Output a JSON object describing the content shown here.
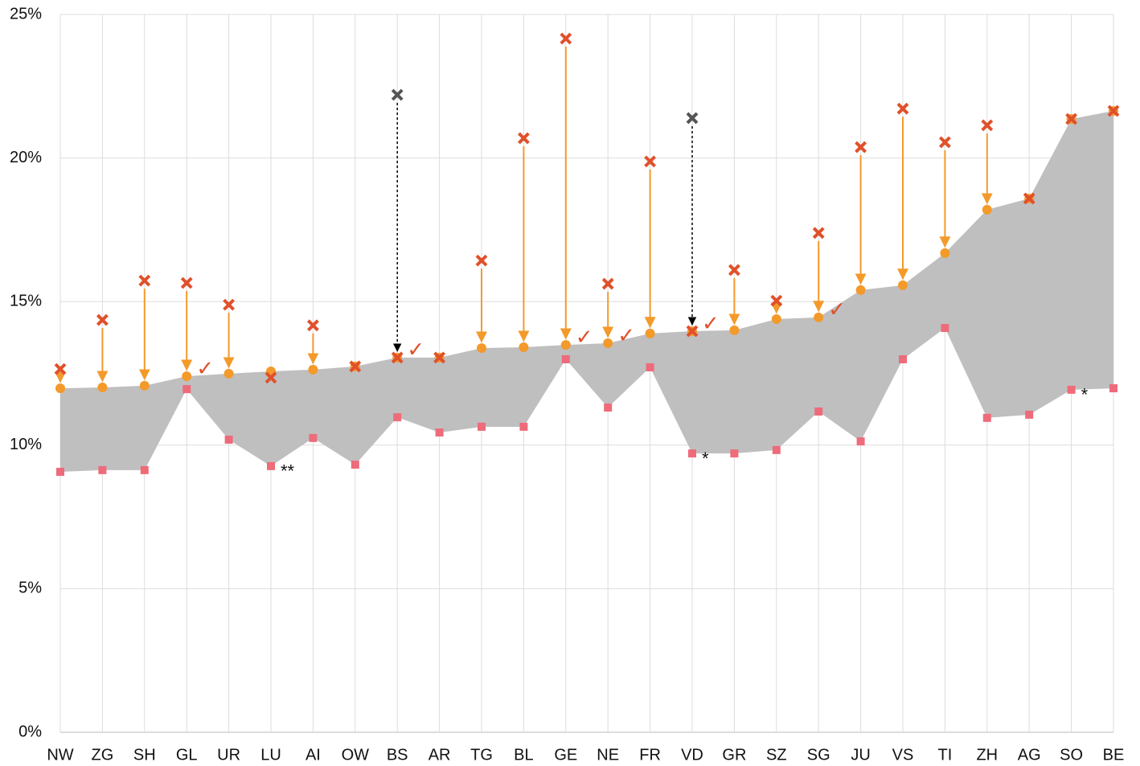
{
  "chart_data": {
    "type": "range-arrows",
    "categories": [
      "NW",
      "ZG",
      "SH",
      "GL",
      "UR",
      "LU",
      "AI",
      "OW",
      "BS",
      "AR",
      "TG",
      "BL",
      "GE",
      "NE",
      "FR",
      "VD",
      "GR",
      "SZ",
      "SG",
      "JU",
      "VS",
      "TI",
      "ZH",
      "AG",
      "SO",
      "BE"
    ],
    "series": [
      {
        "color": "#f39a2b",
        "marker": "circle",
        "values": [
          11.98,
          12.01,
          12.07,
          12.4,
          12.49,
          12.57,
          12.63,
          12.74,
          13.05,
          13.05,
          13.38,
          13.41,
          13.49,
          13.55,
          13.89,
          13.97,
          14.0,
          14.39,
          14.45,
          15.4,
          15.57,
          16.69,
          18.2,
          18.59,
          21.36,
          21.64
        ]
      },
      {
        "color": "#ee6b7a",
        "marker": "square",
        "values": [
          9.07,
          9.13,
          9.13,
          11.95,
          10.19,
          9.27,
          10.25,
          9.32,
          10.97,
          10.44,
          10.64,
          10.64,
          12.99,
          11.31,
          12.71,
          9.71,
          9.71,
          9.83,
          11.17,
          10.13,
          12.99,
          14.08,
          10.95,
          11.06,
          11.93,
          11.98
        ]
      },
      {
        "color": "#e0502a",
        "marker": "cross",
        "values": [
          12.65,
          14.36,
          15.73,
          15.65,
          14.89,
          12.35,
          14.17,
          12.74,
          13.05,
          13.05,
          16.43,
          20.69,
          24.16,
          15.62,
          19.88,
          13.97,
          16.1,
          15.03,
          17.39,
          20.38,
          21.72,
          20.55,
          21.14,
          18.59,
          21.36,
          21.64
        ]
      },
      {
        "color": "#555555",
        "marker": "cross",
        "values": [
          null,
          null,
          null,
          null,
          null,
          null,
          null,
          null,
          22.2,
          null,
          null,
          null,
          null,
          null,
          null,
          21.39,
          null,
          null,
          null,
          null,
          null,
          null,
          null,
          null,
          null,
          null
        ]
      }
    ],
    "area_color": "#bfbfc0",
    "checks": [
      null,
      null,
      null,
      "✓",
      null,
      null,
      null,
      null,
      "✓",
      null,
      null,
      null,
      "✓",
      "✓",
      null,
      "✓",
      null,
      null,
      "✓",
      null,
      null,
      null,
      null,
      null,
      null,
      null
    ],
    "check_color": "#e0502a",
    "notes": [
      null,
      null,
      null,
      null,
      null,
      "**",
      null,
      null,
      null,
      null,
      null,
      null,
      null,
      null,
      null,
      "*",
      null,
      null,
      null,
      null,
      null,
      null,
      null,
      null,
      "*",
      null
    ],
    "ylim": [
      0,
      25
    ],
    "yticks": [
      {
        "value": 0,
        "label": "0%"
      },
      {
        "value": 5,
        "label": "5%"
      },
      {
        "value": 10,
        "label": "10%"
      },
      {
        "value": 15,
        "label": "15%"
      },
      {
        "value": 20,
        "label": "20%"
      },
      {
        "value": 25,
        "label": "25%"
      }
    ],
    "grid": true
  }
}
